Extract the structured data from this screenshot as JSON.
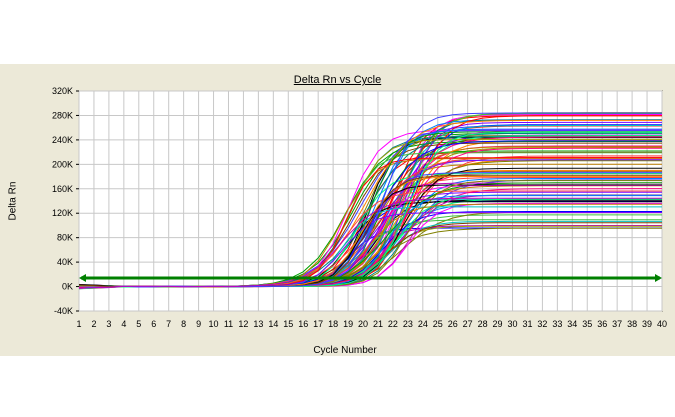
{
  "chart_data": {
    "type": "line",
    "title": "Delta Rn vs Cycle",
    "xlabel": "Cycle Number",
    "ylabel": "Delta Rn",
    "x": [
      1,
      2,
      3,
      4,
      5,
      6,
      7,
      8,
      9,
      10,
      11,
      12,
      13,
      14,
      15,
      16,
      17,
      18,
      19,
      20,
      21,
      22,
      23,
      24,
      25,
      26,
      27,
      28,
      29,
      30,
      31,
      32,
      33,
      34,
      35,
      36,
      37,
      38,
      39,
      40
    ],
    "xlim": [
      1,
      40
    ],
    "ylim": [
      -40000,
      320000
    ],
    "y_ticks": [
      "-40K",
      "0K",
      "40K",
      "80K",
      "120K",
      "160K",
      "200K",
      "240K",
      "280K",
      "320K"
    ],
    "y_tick_values": [
      -40000,
      0,
      40000,
      80000,
      120000,
      160000,
      200000,
      240000,
      280000,
      320000
    ],
    "x_ticks": [
      "1",
      "2",
      "3",
      "4",
      "5",
      "6",
      "7",
      "8",
      "9",
      "10",
      "11",
      "12",
      "13",
      "14",
      "15",
      "16",
      "17",
      "18",
      "19",
      "20",
      "21",
      "22",
      "23",
      "24",
      "25",
      "26",
      "27",
      "28",
      "29",
      "30",
      "31",
      "32",
      "33",
      "34",
      "35",
      "36",
      "37",
      "38",
      "39",
      "40"
    ],
    "grid": true,
    "threshold": {
      "value": 14000,
      "color": "#008000"
    },
    "series_note_count": 96,
    "plateau_range": [
      95000,
      285000
    ],
    "midpoint_range": [
      18.5,
      23.5
    ]
  }
}
